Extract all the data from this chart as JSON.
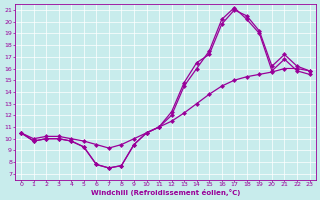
{
  "xlabel": "Windchill (Refroidissement éolien,°C)",
  "bg_color": "#c8ecec",
  "line_color": "#990099",
  "xlim": [
    -0.5,
    23.5
  ],
  "ylim": [
    6.5,
    21.5
  ],
  "xticks": [
    0,
    1,
    2,
    3,
    4,
    5,
    6,
    7,
    8,
    9,
    10,
    11,
    12,
    13,
    14,
    15,
    16,
    17,
    18,
    19,
    20,
    21,
    22,
    23
  ],
  "yticks": [
    7,
    8,
    9,
    10,
    11,
    12,
    13,
    14,
    15,
    16,
    17,
    18,
    19,
    20,
    21
  ],
  "curve1_x": [
    0,
    1,
    2,
    3,
    4,
    5,
    6,
    7,
    8,
    9,
    10,
    11,
    12,
    13,
    14,
    15,
    16,
    17,
    18,
    19,
    20,
    21,
    22,
    23
  ],
  "curve1_y": [
    10.5,
    9.8,
    10.0,
    10.0,
    9.8,
    9.3,
    7.8,
    7.5,
    7.7,
    9.5,
    10.5,
    11.0,
    12.3,
    14.8,
    16.5,
    17.2,
    19.8,
    21.0,
    20.5,
    19.2,
    16.2,
    17.2,
    16.2,
    15.8
  ],
  "curve2_x": [
    0,
    1,
    2,
    3,
    4,
    5,
    6,
    7,
    8,
    9,
    10,
    11,
    12,
    13,
    14,
    15,
    16,
    17,
    18,
    19,
    20,
    21,
    22,
    23
  ],
  "curve2_y": [
    10.5,
    10.0,
    10.2,
    10.2,
    10.0,
    9.8,
    9.5,
    9.2,
    9.5,
    10.0,
    10.5,
    11.0,
    11.5,
    12.2,
    13.0,
    13.8,
    14.5,
    15.0,
    15.3,
    15.5,
    15.7,
    16.0,
    16.0,
    15.8
  ],
  "curve3_x": [
    0,
    1,
    2,
    3,
    4,
    5,
    6,
    7,
    8,
    9,
    10,
    11,
    12,
    13,
    14,
    15,
    16,
    17,
    18,
    19,
    20,
    21,
    22,
    23
  ],
  "curve3_y": [
    10.5,
    9.8,
    10.0,
    10.0,
    9.8,
    9.3,
    7.8,
    7.5,
    7.7,
    9.5,
    10.5,
    11.0,
    12.0,
    14.5,
    16.0,
    17.5,
    20.2,
    21.2,
    20.2,
    19.0,
    15.8,
    16.8,
    15.8,
    15.5
  ]
}
